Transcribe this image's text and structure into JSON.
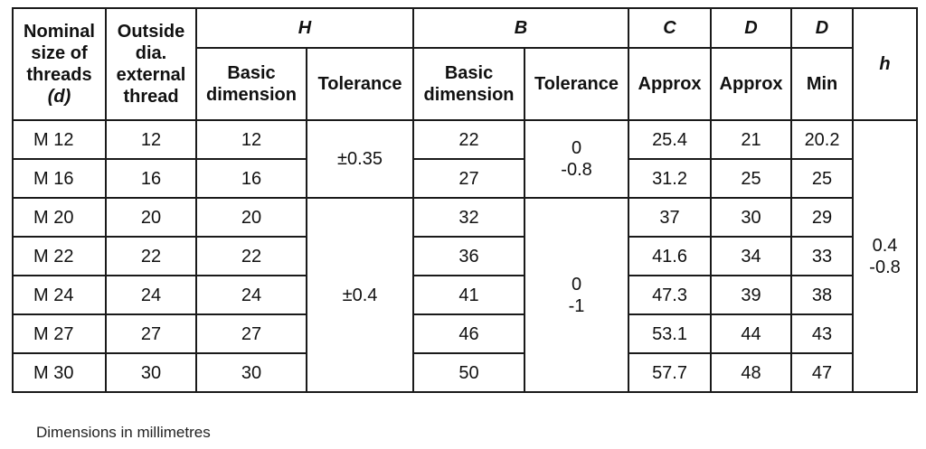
{
  "headers": {
    "nominal": "Nominal\nsize of\nthreads",
    "nominal_d": "(d)",
    "outside": "Outside\ndia.\nexternal\nthread",
    "H": "H",
    "B": "B",
    "C": "C",
    "D1": "D",
    "D2": "D",
    "h": "h",
    "basic_dimension": "Basic\ndimension",
    "tolerance": "Tolerance",
    "approx": "Approx",
    "min": "Min"
  },
  "rows": [
    {
      "size": "M 12",
      "outside": "12",
      "H": "12",
      "B": "22",
      "C": "25.4",
      "D_approx": "21",
      "D_min": "20.2"
    },
    {
      "size": "M 16",
      "outside": "16",
      "H": "16",
      "B": "27",
      "C": "31.2",
      "D_approx": "25",
      "D_min": "25"
    },
    {
      "size": "M 20",
      "outside": "20",
      "H": "20",
      "B": "32",
      "C": "37",
      "D_approx": "30",
      "D_min": "29"
    },
    {
      "size": "M 22",
      "outside": "22",
      "H": "22",
      "B": "36",
      "C": "41.6",
      "D_approx": "34",
      "D_min": "33"
    },
    {
      "size": "M 24",
      "outside": "24",
      "H": "24",
      "B": "41",
      "C": "47.3",
      "D_approx": "39",
      "D_min": "38"
    },
    {
      "size": "M 27",
      "outside": "27",
      "H": "27",
      "B": "46",
      "C": "53.1",
      "D_approx": "44",
      "D_min": "43"
    },
    {
      "size": "M 30",
      "outside": "30",
      "H": "30",
      "B": "50",
      "C": "57.7",
      "D_approx": "48",
      "D_min": "47"
    }
  ],
  "merged": {
    "H_tol_a": "±0.35",
    "H_tol_b": "±0.4",
    "B_tol_a": "0\n-0.8",
    "B_tol_b": "0\n-1",
    "h_val": "0.4\n-0.8"
  },
  "note": "Dimensions in millimetres"
}
